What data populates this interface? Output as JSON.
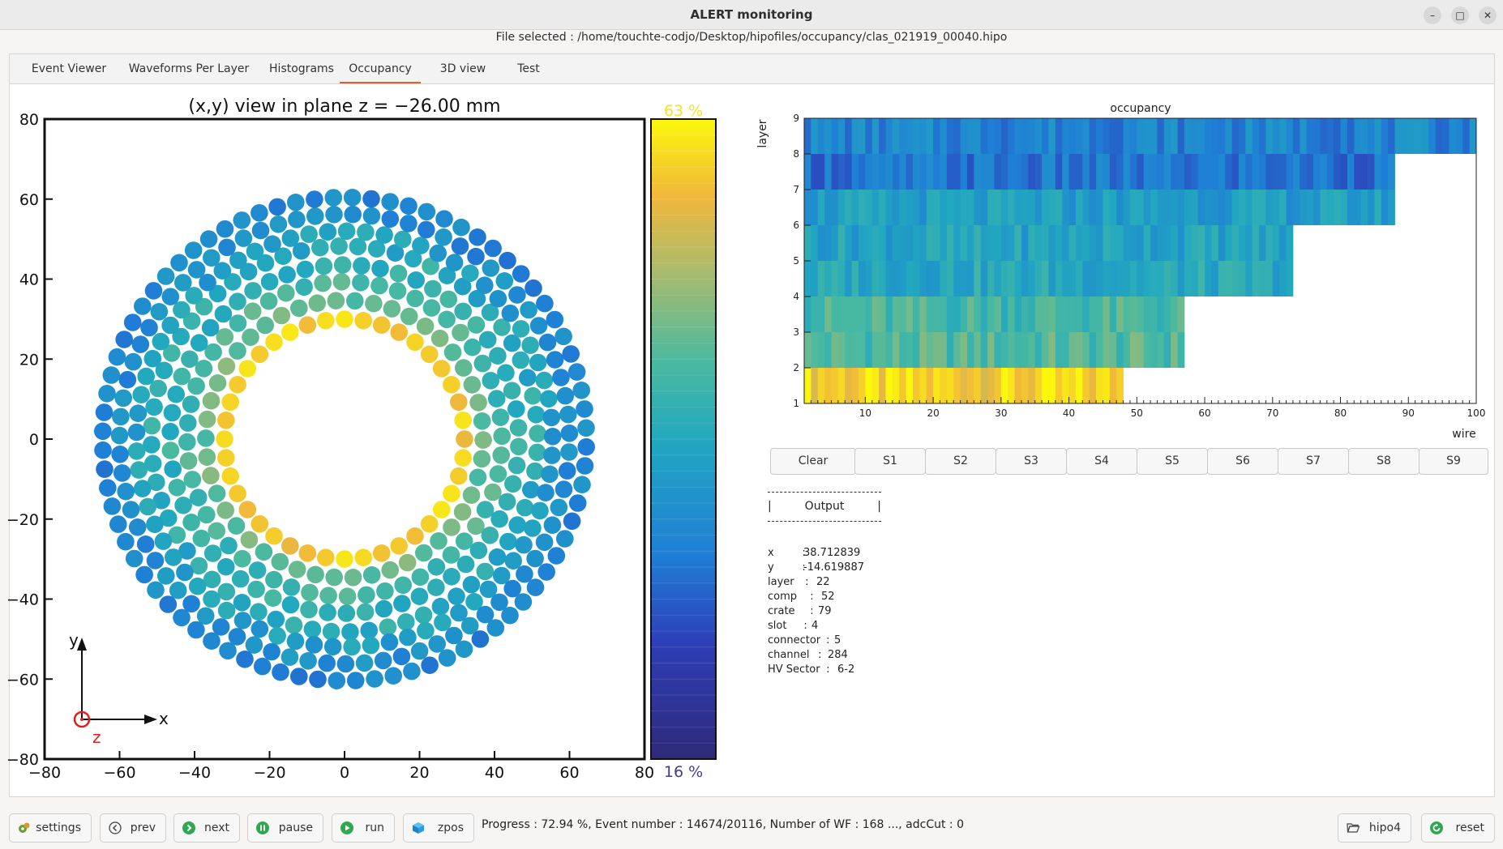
{
  "window": {
    "title": "ALERT monitoring",
    "file_selected": "File selected : /home/touchte-codjo/Desktop/hipofiles/occupancy/clas_021919_00040.hipo"
  },
  "tabs": [
    {
      "label": "Event Viewer"
    },
    {
      "label": "Waveforms Per Layer"
    },
    {
      "label": "Histograms"
    },
    {
      "label": "Occupancy",
      "active": true
    },
    {
      "label": "3D view"
    },
    {
      "label": "Test"
    }
  ],
  "xy_view": {
    "title": "(x,y) view in plane z = −26.00 mm",
    "xticks": [
      "−80",
      "−60",
      "−40",
      "−20",
      "0",
      "20",
      "40",
      "60",
      "80"
    ],
    "yticks": [
      "80",
      "60",
      "40",
      "20",
      "0",
      "−20",
      "−40",
      "−60",
      "−80"
    ],
    "axis_x": "x",
    "axis_y": "y",
    "axis_z": "z",
    "colorbar_max": "63 %",
    "colorbar_min": "16 %",
    "range": [
      -80,
      80
    ]
  },
  "chart_data": {
    "type": "heatmap",
    "title": "occupancy",
    "xlabel": "wire",
    "ylabel": "layer",
    "xlim": [
      1,
      100
    ],
    "ylim": [
      1,
      9
    ],
    "xticks": [
      "10",
      "20",
      "30",
      "40",
      "50",
      "60",
      "70",
      "80",
      "90",
      "100"
    ],
    "yticks": [
      "1",
      "2",
      "3",
      "4",
      "5",
      "6",
      "7",
      "8",
      "9"
    ],
    "rows": [
      {
        "layer": 1,
        "wires": 47,
        "level": 0.92
      },
      {
        "layer": 2,
        "wires": 56,
        "level": 0.62
      },
      {
        "layer": 3,
        "wires": 56,
        "level": 0.6
      },
      {
        "layer": 4,
        "wires": 72,
        "level": 0.5
      },
      {
        "layer": 5,
        "wires": 72,
        "level": 0.48
      },
      {
        "layer": 6,
        "wires": 87,
        "level": 0.45
      },
      {
        "layer": 7,
        "wires": 87,
        "level": 0.3
      },
      {
        "layer": 8,
        "wires": 99,
        "level": 0.35
      }
    ]
  },
  "controls": [
    "Clear",
    "S1",
    "S2",
    "S3",
    "S4",
    "S5",
    "S6",
    "S7",
    "S8",
    "S9"
  ],
  "output": {
    "heading": "Output",
    "fields": [
      {
        "label": "x",
        "sep": "   :",
        "value": "38.712839"
      },
      {
        "label": "y",
        "sep": "   :",
        "value": "-14.619887"
      },
      {
        "label": "layer",
        "sep": " :",
        "value": "22"
      },
      {
        "label": "comp",
        "sep": "  :",
        "value": "52"
      },
      {
        "label": "crate",
        "sep": "  :",
        "value": "79"
      },
      {
        "label": "slot",
        "sep": "   :",
        "value": "4"
      },
      {
        "label": "connector",
        "sep": ":",
        "value": "5"
      },
      {
        "label": "channel",
        "sep": " :",
        "value": "284"
      },
      {
        "label": "HV Sector",
        "sep": " :",
        "value": "6-2"
      }
    ]
  },
  "bottom": {
    "settings": "settings",
    "prev": "prev",
    "next": "next",
    "pause": "pause",
    "run": "run",
    "zpos": "zpos",
    "progress": "Progress : 72.94 %, Event number : 14674/20116, Number of WF : 168 ..., adcCut : 0",
    "hipo4": "hipo4",
    "reset": "reset"
  },
  "colors": {
    "accent": "#e0622a",
    "yellow": "#fbf30f",
    "blue": "#1f8fdc",
    "highlight": "#d02020"
  }
}
